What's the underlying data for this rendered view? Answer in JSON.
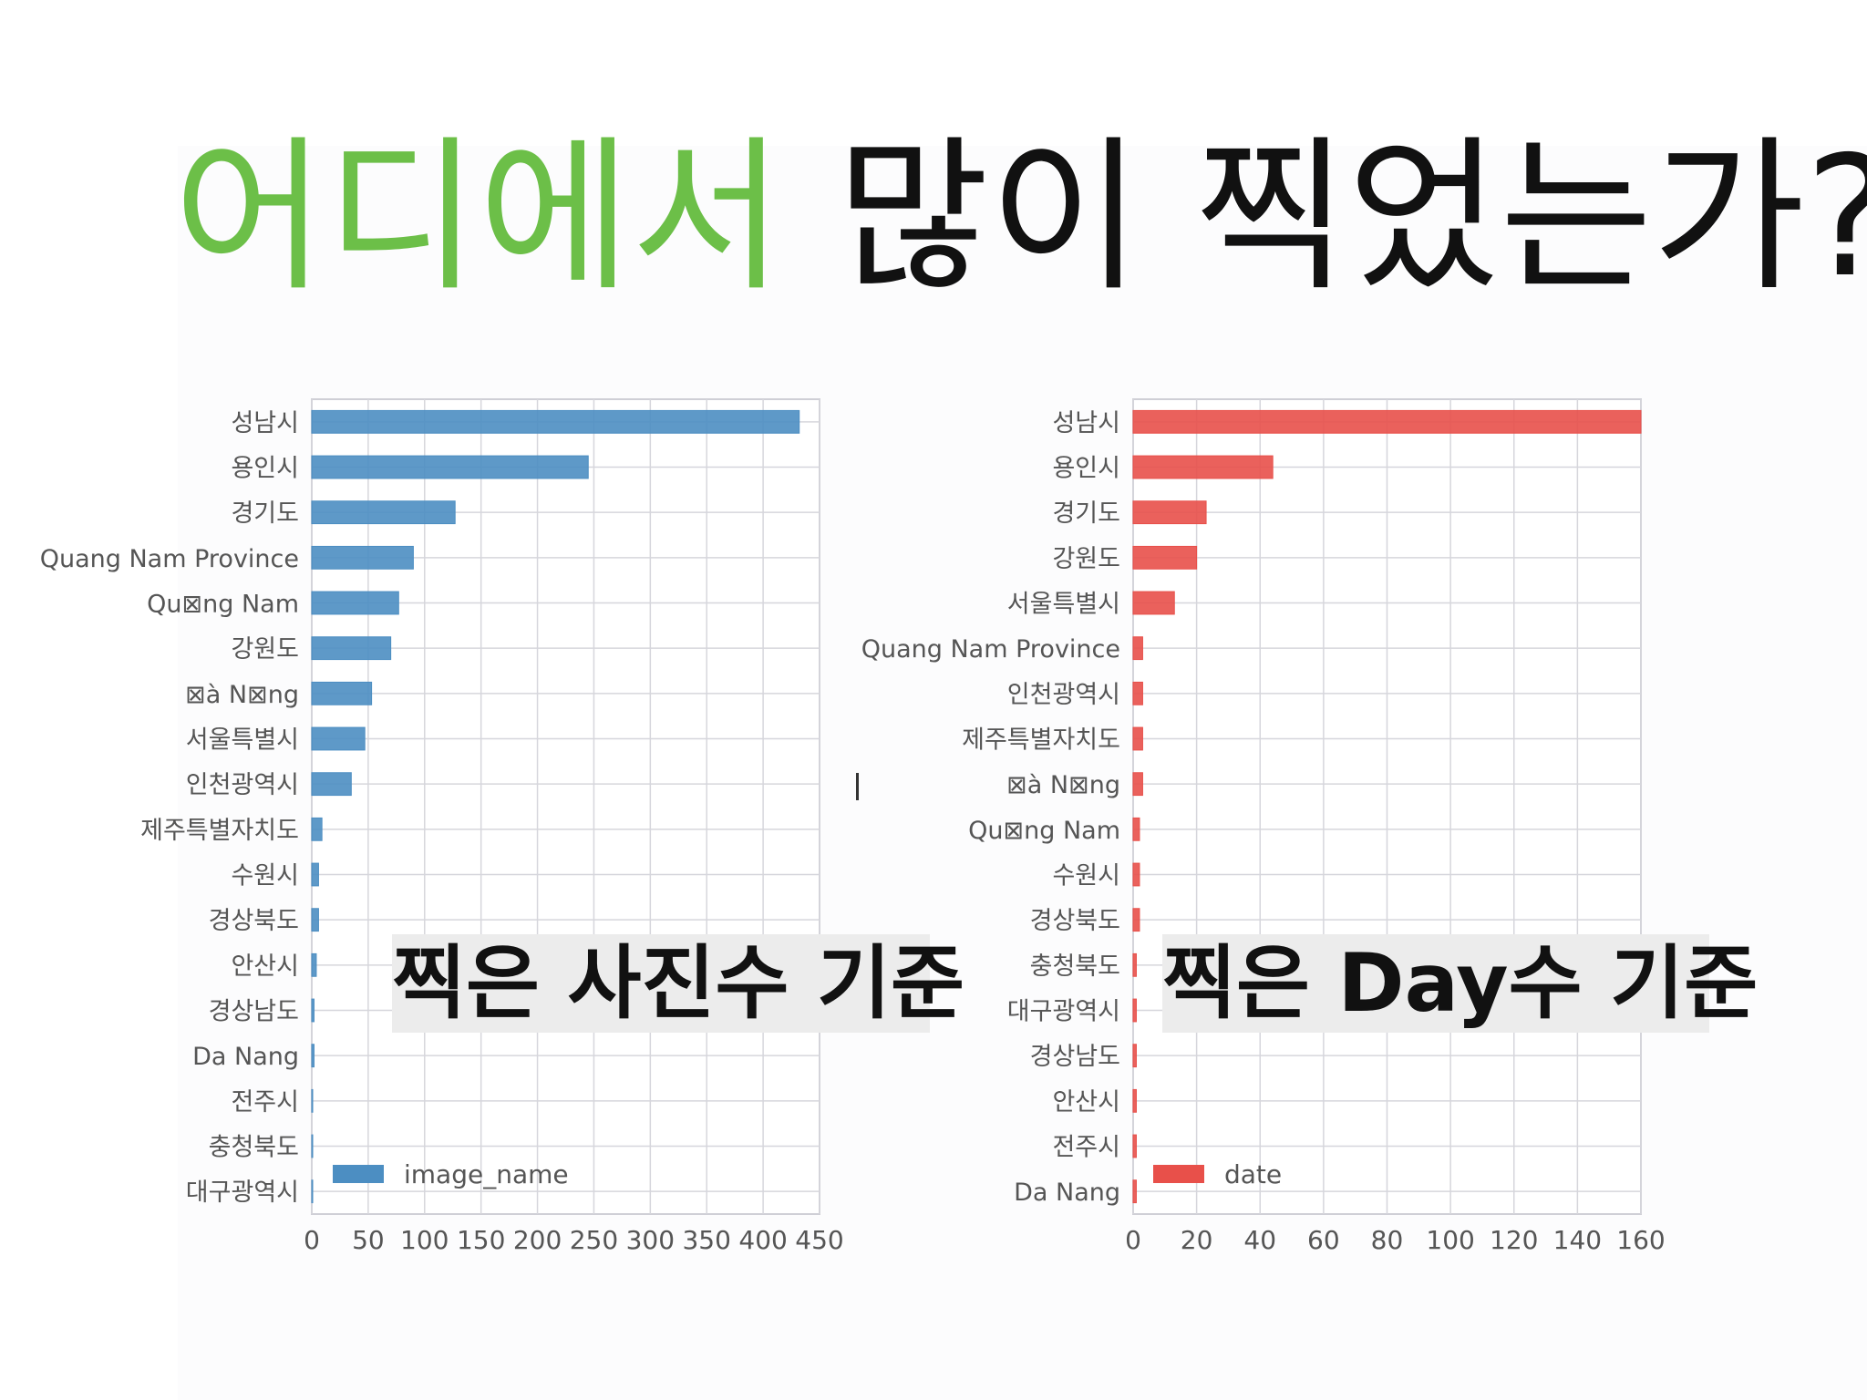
{
  "title": {
    "green": "어디에서",
    "black": "많이 찍었는가?"
  },
  "captions": {
    "left": "찍은 사진수 기준",
    "right": "찍은 Day수  기준"
  },
  "chart_data": [
    {
      "type": "bar",
      "orientation": "horizontal",
      "categories": [
        "성남시",
        "용인시",
        "경기도",
        "Quang Nam Province",
        "Qu⊠ng Nam",
        "강원도",
        "⊠à N⊠ng",
        "서울특별시",
        "인천광역시",
        "제주특별자치도",
        "수원시",
        "경상북도",
        "안산시",
        "경상남도",
        "Da Nang",
        "전주시",
        "충청북도",
        "대구광역시"
      ],
      "series": [
        {
          "name": "image_name",
          "values": [
            432,
            245,
            127,
            90,
            77,
            70,
            53,
            47,
            35,
            9,
            6,
            6,
            4,
            2,
            2,
            0.5,
            0.5,
            0.5
          ]
        }
      ],
      "xlim": [
        0,
        450
      ],
      "xticks": [
        0,
        50,
        100,
        150,
        200,
        250,
        300,
        350,
        400,
        450
      ],
      "grid": true,
      "legend": "bottom-left",
      "color": "#4c8ec2"
    },
    {
      "type": "bar",
      "orientation": "horizontal",
      "categories": [
        "성남시",
        "용인시",
        "경기도",
        "강원도",
        "서울특별시",
        "Quang Nam Province",
        "인천광역시",
        "제주특별자치도",
        "⊠à N⊠ng",
        "Qu⊠ng Nam",
        "수원시",
        "경상북도",
        "충청북도",
        "대구광역시",
        "경상남도",
        "안산시",
        "전주시",
        "Da Nang"
      ],
      "series": [
        {
          "name": "date",
          "values": [
            160,
            44,
            23,
            20,
            13,
            3,
            3,
            3,
            3,
            2,
            2,
            2,
            1,
            1,
            1,
            1,
            1,
            1
          ]
        }
      ],
      "xlim": [
        0,
        160
      ],
      "xticks": [
        0,
        20,
        40,
        60,
        80,
        100,
        120,
        140,
        160
      ],
      "grid": true,
      "legend": "bottom-left",
      "color": "#e8504a"
    }
  ]
}
